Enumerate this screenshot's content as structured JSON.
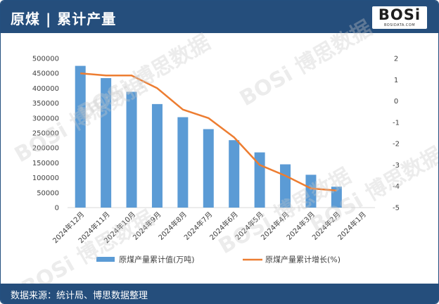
{
  "header": {
    "title": "原煤 | 累计产量",
    "logo": "BOSi",
    "logo_sub": "BOSIDATA.COM"
  },
  "footer": {
    "source": "数据来源：统计局、博思数据整理"
  },
  "watermark": "BOSi 博思数据",
  "colors": {
    "bar": "#5b9bd5",
    "line": "#ed7d31",
    "header": "#254e7c"
  },
  "chart_data": {
    "type": "bar+line",
    "categories": [
      "2024年12月",
      "2024年11月",
      "2024年10月",
      "2024年9月",
      "2024年8月",
      "2024年7月",
      "2024年6月",
      "2024年5月",
      "2024年4月",
      "2024年3月",
      "2024年2月",
      "2024年1月"
    ],
    "series": [
      {
        "name": "原煤产量累计值(万吨)",
        "type": "bar",
        "axis": "left",
        "values": [
          475000,
          434000,
          388000,
          347000,
          303000,
          263000,
          226000,
          185000,
          145000,
          110000,
          70000,
          null
        ]
      },
      {
        "name": "原煤产量累计增长(%)",
        "type": "line",
        "axis": "right",
        "values": [
          1.3,
          1.2,
          1.2,
          0.6,
          -0.4,
          -0.8,
          -1.7,
          -3.0,
          -3.5,
          -4.1,
          -4.2,
          null
        ]
      }
    ],
    "y_left": {
      "min": 0,
      "max": 500000,
      "ticks": [
        "500000",
        "450000",
        "400000",
        "350000",
        "300000",
        "250000",
        "200000",
        "150000",
        "100000",
        "50000",
        "0"
      ]
    },
    "y_right": {
      "min": -5,
      "max": 2,
      "ticks": [
        "2",
        "1",
        "0",
        "-1",
        "-2",
        "-3",
        "-4",
        "-5"
      ]
    },
    "legend_position": "bottom",
    "grid": false
  }
}
